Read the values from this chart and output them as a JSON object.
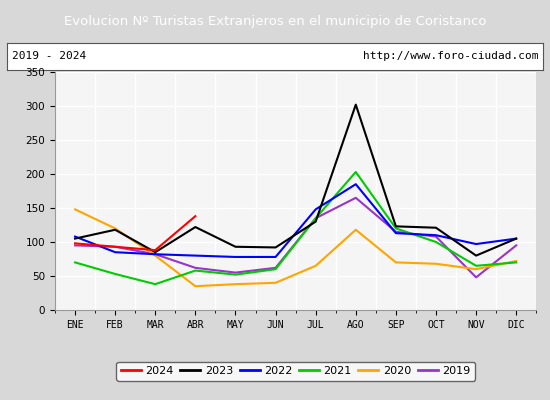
{
  "title": "Evolucion Nº Turistas Extranjeros en el municipio de Coristanco",
  "subtitle_left": "2019 - 2024",
  "subtitle_right": "http://www.foro-ciudad.com",
  "title_bg_color": "#4d7ebf",
  "title_text_color": "#ffffff",
  "months": [
    "ENE",
    "FEB",
    "MAR",
    "ABR",
    "MAY",
    "JUN",
    "JUL",
    "AGO",
    "SEP",
    "OCT",
    "NOV",
    "DIC"
  ],
  "ylim": [
    0,
    350
  ],
  "yticks": [
    0,
    50,
    100,
    150,
    200,
    250,
    300,
    350
  ],
  "series": {
    "2024": {
      "color": "#ff0000",
      "values": [
        98,
        93,
        88,
        138,
        null,
        null,
        null,
        null,
        null,
        null,
        null,
        null
      ]
    },
    "2023": {
      "color": "#000000",
      "values": [
        105,
        118,
        85,
        122,
        93,
        92,
        130,
        302,
        123,
        121,
        80,
        105
      ]
    },
    "2022": {
      "color": "#0000ff",
      "values": [
        108,
        85,
        82,
        80,
        78,
        78,
        148,
        185,
        113,
        110,
        97,
        105
      ]
    },
    "2021": {
      "color": "#00cc00",
      "values": [
        70,
        53,
        38,
        58,
        52,
        60,
        135,
        203,
        120,
        100,
        65,
        70
      ]
    },
    "2020": {
      "color": "#ffa500",
      "values": [
        148,
        120,
        80,
        35,
        38,
        40,
        65,
        118,
        70,
        68,
        60,
        72
      ]
    },
    "2019": {
      "color": "#9933cc",
      "values": [
        95,
        93,
        82,
        62,
        55,
        62,
        135,
        165,
        115,
        108,
        48,
        95
      ]
    }
  },
  "legend_order": [
    "2024",
    "2023",
    "2022",
    "2021",
    "2020",
    "2019"
  ],
  "outer_bg_color": "#d8d8d8",
  "plot_bg_color": "#e8e8e8",
  "inner_bg_color": "#f5f5f5",
  "grid_color": "#ffffff",
  "subtitle_bg": "#ffffff",
  "subtitle_border": "#555555"
}
